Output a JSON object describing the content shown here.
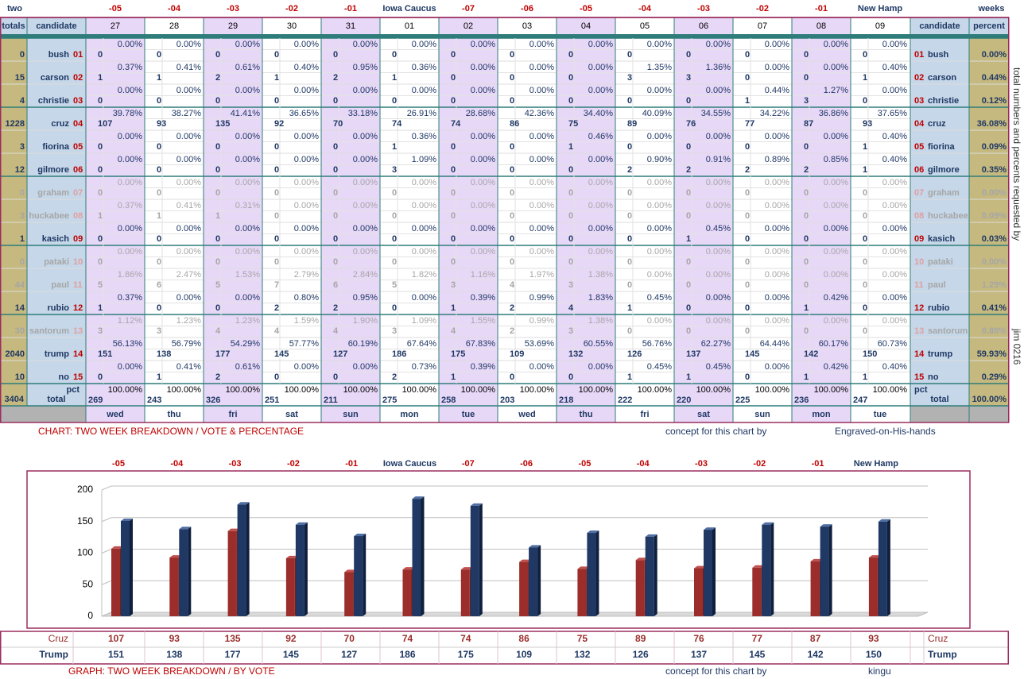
{
  "table": {
    "corner_left": "two",
    "corner_right": "weeks",
    "countdown": [
      "-05",
      "-04",
      "-03",
      "-02",
      "-01",
      "Iowa Caucus",
      "-07",
      "-06",
      "-05",
      "-04",
      "-03",
      "-02",
      "-01",
      "New Hamp"
    ],
    "header_totals": "totals",
    "header_candidate": "candidate",
    "header_percent": "percent",
    "days": [
      "27",
      "28",
      "29",
      "30",
      "31",
      "01",
      "02",
      "03",
      "04",
      "05",
      "06",
      "07",
      "08",
      "09"
    ],
    "weekdays": [
      "wed",
      "thu",
      "fri",
      "sat",
      "sun",
      "mon",
      "tue",
      "wed",
      "thu",
      "fri",
      "sat",
      "sun",
      "mon",
      "tue"
    ],
    "rows": [
      {
        "name": "bush",
        "num": "01",
        "total": "0",
        "pct": "0.00%",
        "dim": false,
        "votes": [
          "0",
          "0",
          "0",
          "0",
          "0",
          "0",
          "0",
          "0",
          "0",
          "0",
          "0",
          "0",
          "0",
          "0"
        ],
        "pcts": [
          "0.00%",
          "0.00%",
          "0.00%",
          "0.00%",
          "0.00%",
          "0.00%",
          "0.00%",
          "0.00%",
          "0.00%",
          "0.00%",
          "0.00%",
          "0.00%",
          "0.00%",
          "0.00%"
        ]
      },
      {
        "name": "carson",
        "num": "02",
        "total": "15",
        "pct": "0.44%",
        "dim": false,
        "votes": [
          "1",
          "1",
          "2",
          "1",
          "2",
          "1",
          "0",
          "0",
          "0",
          "3",
          "3",
          "0",
          "0",
          "1"
        ],
        "pcts": [
          "0.37%",
          "0.41%",
          "0.61%",
          "0.40%",
          "0.95%",
          "0.36%",
          "0.00%",
          "0.00%",
          "0.00%",
          "1.35%",
          "1.36%",
          "0.00%",
          "0.00%",
          "0.40%"
        ]
      },
      {
        "name": "christie",
        "num": "03",
        "total": "4",
        "pct": "0.12%",
        "dim": false,
        "votes": [
          "0",
          "0",
          "0",
          "0",
          "0",
          "0",
          "0",
          "0",
          "0",
          "0",
          "0",
          "1",
          "3",
          "0"
        ],
        "pcts": [
          "0.00%",
          "0.00%",
          "0.00%",
          "0.00%",
          "0.00%",
          "0.00%",
          "0.00%",
          "0.00%",
          "0.00%",
          "0.00%",
          "0.00%",
          "0.44%",
          "1.27%",
          "0.00%"
        ]
      },
      {
        "name": "cruz",
        "num": "04",
        "total": "1228",
        "pct": "36.08%",
        "dim": false,
        "votes": [
          "107",
          "93",
          "135",
          "92",
          "70",
          "74",
          "74",
          "86",
          "75",
          "89",
          "76",
          "77",
          "87",
          "93"
        ],
        "pcts": [
          "39.78%",
          "38.27%",
          "41.41%",
          "36.65%",
          "33.18%",
          "26.91%",
          "28.68%",
          "42.36%",
          "34.40%",
          "40.09%",
          "34.55%",
          "34.22%",
          "36.86%",
          "37.65%"
        ]
      },
      {
        "name": "fiorina",
        "num": "05",
        "total": "3",
        "pct": "0.09%",
        "dim": false,
        "votes": [
          "0",
          "0",
          "0",
          "0",
          "0",
          "1",
          "0",
          "0",
          "1",
          "0",
          "0",
          "0",
          "0",
          "1"
        ],
        "pcts": [
          "0.00%",
          "0.00%",
          "0.00%",
          "0.00%",
          "0.00%",
          "0.36%",
          "0.00%",
          "0.00%",
          "0.46%",
          "0.00%",
          "0.00%",
          "0.00%",
          "0.00%",
          "0.40%"
        ]
      },
      {
        "name": "gilmore",
        "num": "06",
        "total": "12",
        "pct": "0.35%",
        "dim": false,
        "votes": [
          "0",
          "0",
          "0",
          "0",
          "0",
          "3",
          "0",
          "0",
          "0",
          "2",
          "2",
          "2",
          "2",
          "1"
        ],
        "pcts": [
          "0.00%",
          "0.00%",
          "0.00%",
          "0.00%",
          "0.00%",
          "1.09%",
          "0.00%",
          "0.00%",
          "0.00%",
          "0.90%",
          "0.91%",
          "0.89%",
          "0.85%",
          "0.40%"
        ]
      },
      {
        "name": "graham",
        "num": "07",
        "total": "0",
        "pct": "0.00%",
        "dim": true,
        "votes": [
          "0",
          "0",
          "0",
          "0",
          "0",
          "0",
          "0",
          "0",
          "0",
          "0",
          "0",
          "0",
          "0",
          "0"
        ],
        "pcts": [
          "0.00%",
          "0.00%",
          "0.00%",
          "0.00%",
          "0.00%",
          "0.00%",
          "0.00%",
          "0.00%",
          "0.00%",
          "0.00%",
          "0.00%",
          "0.00%",
          "0.00%",
          "0.00%"
        ]
      },
      {
        "name": "huckabee",
        "num": "08",
        "total": "3",
        "pct": "0.09%",
        "dim": true,
        "votes": [
          "1",
          "1",
          "1",
          "0",
          "0",
          "0",
          "0",
          "0",
          "0",
          "0",
          "0",
          "0",
          "0",
          "0"
        ],
        "pcts": [
          "0.37%",
          "0.41%",
          "0.31%",
          "0.00%",
          "0.00%",
          "0.00%",
          "0.00%",
          "0.00%",
          "0.00%",
          "0.00%",
          "0.00%",
          "0.00%",
          "0.00%",
          "0.00%"
        ]
      },
      {
        "name": "kasich",
        "num": "09",
        "total": "1",
        "pct": "0.03%",
        "dim": false,
        "votes": [
          "0",
          "0",
          "0",
          "0",
          "0",
          "0",
          "0",
          "0",
          "0",
          "0",
          "1",
          "0",
          "0",
          "0"
        ],
        "pcts": [
          "0.00%",
          "0.00%",
          "0.00%",
          "0.00%",
          "0.00%",
          "0.00%",
          "0.00%",
          "0.00%",
          "0.00%",
          "0.00%",
          "0.45%",
          "0.00%",
          "0.00%",
          "0.00%"
        ]
      },
      {
        "name": "pataki",
        "num": "10",
        "total": "0",
        "pct": "0.00%",
        "dim": true,
        "votes": [
          "0",
          "0",
          "0",
          "0",
          "0",
          "0",
          "0",
          "0",
          "0",
          "0",
          "0",
          "0",
          "0",
          "0"
        ],
        "pcts": [
          "0.00%",
          "0.00%",
          "0.00%",
          "0.00%",
          "0.00%",
          "0.00%",
          "0.00%",
          "0.00%",
          "0.00%",
          "0.00%",
          "0.00%",
          "0.00%",
          "0.00%",
          "0.00%"
        ]
      },
      {
        "name": "paul",
        "num": "11",
        "total": "44",
        "pct": "1.29%",
        "dim": true,
        "votes": [
          "5",
          "6",
          "5",
          "7",
          "6",
          "5",
          "3",
          "4",
          "3",
          "0",
          "0",
          "0",
          "0",
          "0"
        ],
        "pcts": [
          "1.86%",
          "2.47%",
          "1.53%",
          "2.79%",
          "2.84%",
          "1.82%",
          "1.16%",
          "1.97%",
          "1.38%",
          "0.00%",
          "0.00%",
          "0.00%",
          "0.00%",
          "0.00%"
        ]
      },
      {
        "name": "rubio",
        "num": "12",
        "total": "14",
        "pct": "0.41%",
        "dim": false,
        "votes": [
          "1",
          "0",
          "0",
          "2",
          "2",
          "0",
          "1",
          "2",
          "4",
          "1",
          "0",
          "0",
          "1",
          "0"
        ],
        "pcts": [
          "0.37%",
          "0.00%",
          "0.00%",
          "0.80%",
          "0.95%",
          "0.00%",
          "0.39%",
          "0.99%",
          "1.83%",
          "0.45%",
          "0.00%",
          "0.00%",
          "0.42%",
          "0.00%"
        ]
      },
      {
        "name": "santorum",
        "num": "13",
        "total": "30",
        "pct": "0.88%",
        "dim": true,
        "votes": [
          "3",
          "3",
          "4",
          "4",
          "4",
          "3",
          "4",
          "2",
          "3",
          "0",
          "0",
          "0",
          "0",
          "0"
        ],
        "pcts": [
          "1.12%",
          "1.23%",
          "1.23%",
          "1.59%",
          "1.90%",
          "1.09%",
          "1.55%",
          "0.99%",
          "1.38%",
          "0.00%",
          "0.00%",
          "0.00%",
          "0.00%",
          "0.00%"
        ]
      },
      {
        "name": "trump",
        "num": "14",
        "total": "2040",
        "pct": "59.93%",
        "dim": false,
        "votes": [
          "151",
          "138",
          "177",
          "145",
          "127",
          "186",
          "175",
          "109",
          "132",
          "126",
          "137",
          "145",
          "142",
          "150"
        ],
        "pcts": [
          "56.13%",
          "56.79%",
          "54.29%",
          "57.77%",
          "60.19%",
          "67.64%",
          "67.83%",
          "53.69%",
          "60.55%",
          "56.76%",
          "62.27%",
          "64.44%",
          "60.17%",
          "60.73%"
        ]
      },
      {
        "name": "no",
        "num": "15",
        "total": "10",
        "pct": "0.29%",
        "dim": false,
        "votes": [
          "0",
          "1",
          "2",
          "0",
          "0",
          "2",
          "1",
          "0",
          "0",
          "1",
          "1",
          "0",
          "1",
          "1"
        ],
        "pcts": [
          "0.00%",
          "0.41%",
          "0.61%",
          "0.00%",
          "0.00%",
          "0.73%",
          "0.39%",
          "0.00%",
          "0.00%",
          "0.45%",
          "0.45%",
          "0.00%",
          "0.42%",
          "0.40%"
        ]
      }
    ],
    "total_row": {
      "label": "total",
      "pct_label": "pct",
      "grand_total": "3404",
      "grand_pct": "100.00%",
      "votes": [
        "269",
        "243",
        "326",
        "251",
        "211",
        "275",
        "258",
        "203",
        "218",
        "222",
        "220",
        "225",
        "236",
        "247"
      ],
      "pct": "100.00%"
    },
    "side_text_top": "total numbers and percents requested by",
    "side_text_bottom": "jim 0216",
    "caption": "CHART: TWO WEEK BREAKDOWN / VOTE & PERCENTAGE",
    "concept_label": "concept for this chart by",
    "concept_author": "Engraved-on-His-hands"
  },
  "graph": {
    "countdown": [
      "-05",
      "-04",
      "-03",
      "-02",
      "-01",
      "Iowa Caucus",
      "-07",
      "-06",
      "-05",
      "-04",
      "-03",
      "-02",
      "-01",
      "New Hamp"
    ],
    "caption": "GRAPH: TWO WEEK BREAKDOWN / BY VOTE",
    "concept_label": "concept for this chart by",
    "concept_author": "kingu",
    "row_cruz_label": "Cruz",
    "row_trump_label": "Trump",
    "colors": {
      "cruz": "#9b2d2b",
      "trump": "#1f3864"
    }
  },
  "chart_data": {
    "type": "bar",
    "categories": [
      "-05",
      "-04",
      "-03",
      "-02",
      "-01",
      "Iowa Caucus",
      "-07",
      "-06",
      "-05",
      "-04",
      "-03",
      "-02",
      "-01",
      "New Hamp"
    ],
    "series": [
      {
        "name": "Cruz",
        "values": [
          107,
          93,
          135,
          92,
          70,
          74,
          74,
          86,
          75,
          89,
          76,
          77,
          87,
          93
        ]
      },
      {
        "name": "Trump",
        "values": [
          151,
          138,
          177,
          145,
          127,
          186,
          175,
          109,
          132,
          126,
          137,
          145,
          142,
          150
        ]
      }
    ],
    "title": "GRAPH: TWO WEEK BREAKDOWN / BY VOTE",
    "xlabel": "",
    "ylabel": "",
    "ylim": [
      0,
      200
    ],
    "yticks": [
      0,
      50,
      100,
      150,
      200
    ],
    "grid": true,
    "legend": "none"
  }
}
